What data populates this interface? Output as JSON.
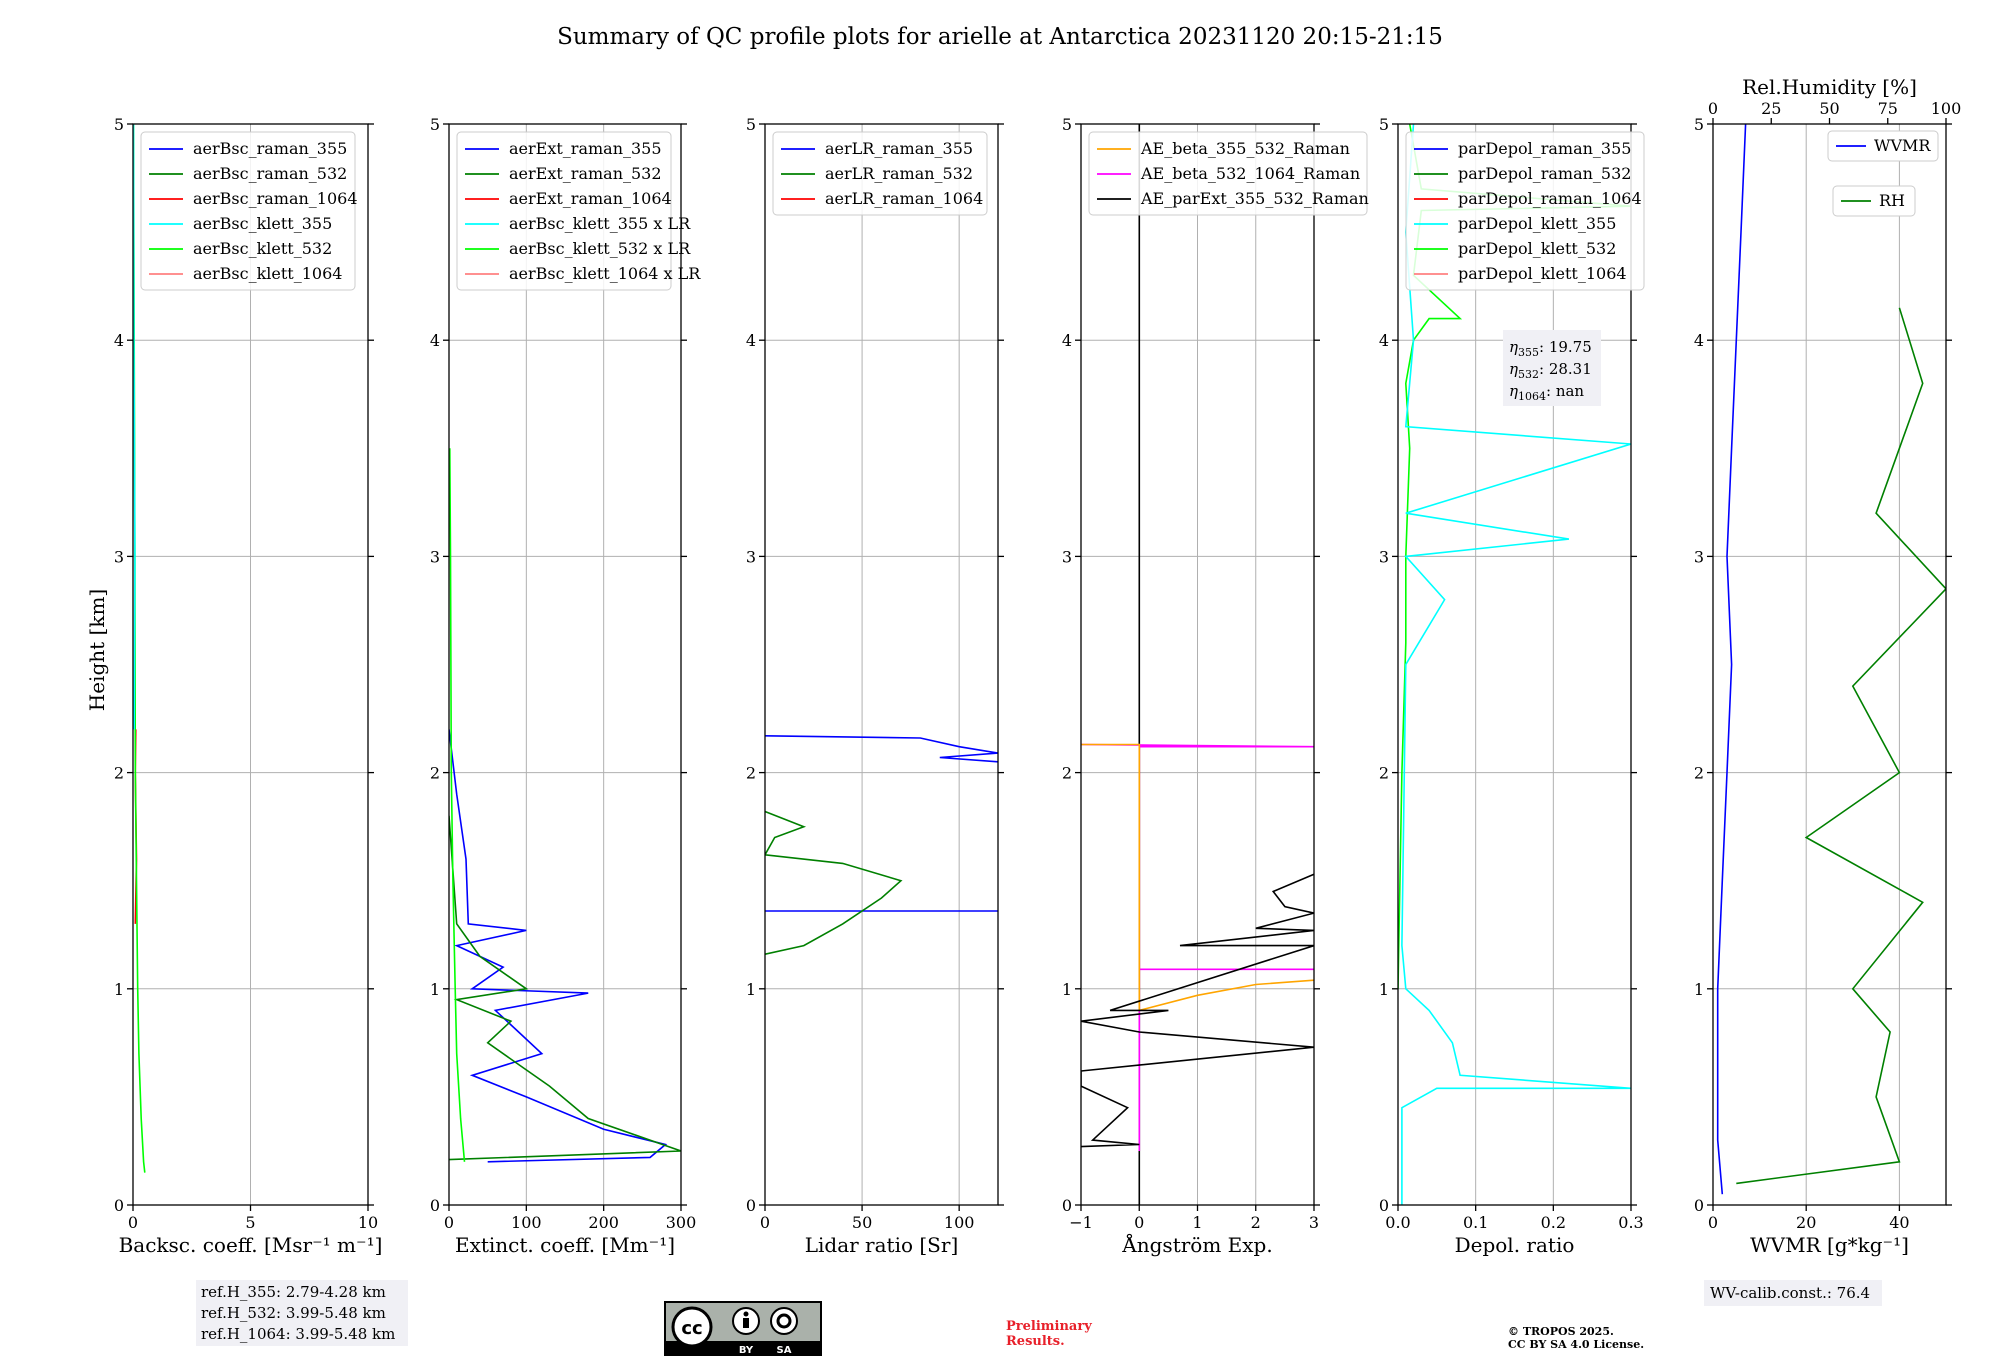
{
  "title": "Summary of QC profile plots for arielle at Antarctica 20231120 20:15-21:15",
  "ylabel": "Height [km]",
  "colors": {
    "raman_355": "#0000ff",
    "raman_532": "#008000",
    "raman_1064": "#ff0000",
    "klett_355": "#00ffff",
    "klett_532": "#00ff00",
    "klett_1064": "#ff8080",
    "ae_beta_355_532": "#ffa500",
    "ae_beta_532_1064": "#ff00ff",
    "ae_parext": "#000000",
    "grid": "#b0b0b0",
    "box_bg": "#f0f0f5"
  },
  "panels": [
    {
      "key": "bsc",
      "xlabel": "Backsc. coeff. [Msr⁻¹ m⁻¹]",
      "xlim": [
        0,
        10
      ],
      "xticks": [
        {
          "v": 0,
          "t": "0"
        },
        {
          "v": 5,
          "t": "5"
        },
        {
          "v": 10,
          "t": "10"
        }
      ],
      "legend": [
        "aerBsc_raman_355",
        "aerBsc_raman_532",
        "aerBsc_raman_1064",
        "aerBsc_klett_355",
        "aerBsc_klett_532",
        "aerBsc_klett_1064"
      ],
      "legend_colors": [
        "raman_355",
        "raman_532",
        "raman_1064",
        "klett_355",
        "klett_532",
        "klett_1064"
      ]
    },
    {
      "key": "ext",
      "xlabel": "Extinct. coeff. [Mm⁻¹]",
      "xlim": [
        0,
        300
      ],
      "xticks": [
        {
          "v": 0,
          "t": "0"
        },
        {
          "v": 100,
          "t": "100"
        },
        {
          "v": 200,
          "t": "200"
        },
        {
          "v": 300,
          "t": "300"
        }
      ],
      "legend": [
        "aerExt_raman_355",
        "aerExt_raman_532",
        "aerExt_raman_1064",
        "aerBsc_klett_355 x LR",
        "aerBsc_klett_532 x LR",
        "aerBsc_klett_1064 x LR"
      ],
      "legend_colors": [
        "raman_355",
        "raman_532",
        "raman_1064",
        "klett_355",
        "klett_532",
        "klett_1064"
      ]
    },
    {
      "key": "lr",
      "xlabel": "Lidar ratio [Sr]",
      "xlim": [
        0,
        120
      ],
      "xticks": [
        {
          "v": 0,
          "t": "0"
        },
        {
          "v": 50,
          "t": "50"
        },
        {
          "v": 100,
          "t": "100"
        }
      ],
      "legend": [
        "aerLR_raman_355",
        "aerLR_raman_532",
        "aerLR_raman_1064"
      ],
      "legend_colors": [
        "raman_355",
        "raman_532",
        "raman_1064"
      ]
    },
    {
      "key": "ae",
      "xlabel": "Ångström Exp.",
      "xlim": [
        -1,
        3
      ],
      "xticks": [
        {
          "v": -1,
          "t": "−1"
        },
        {
          "v": 0,
          "t": "0"
        },
        {
          "v": 1,
          "t": "1"
        },
        {
          "v": 2,
          "t": "2"
        },
        {
          "v": 3,
          "t": "3"
        }
      ],
      "legend": [
        "AE_beta_355_532_Raman",
        "AE_beta_532_1064_Raman",
        "AE_parExt_355_532_Raman"
      ],
      "legend_colors": [
        "ae_beta_355_532",
        "ae_beta_532_1064",
        "ae_parext"
      ]
    },
    {
      "key": "dep",
      "xlabel": "Depol. ratio",
      "xlim": [
        0,
        0.3
      ],
      "xticks": [
        {
          "v": 0,
          "t": "0.0"
        },
        {
          "v": 0.1,
          "t": "0.1"
        },
        {
          "v": 0.2,
          "t": "0.2"
        },
        {
          "v": 0.3,
          "t": "0.3"
        }
      ],
      "legend": [
        "parDepol_raman_355",
        "parDepol_raman_532",
        "parDepol_raman_1064",
        "parDepol_klett_355",
        "parDepol_klett_532",
        "parDepol_klett_1064"
      ],
      "legend_colors": [
        "raman_355",
        "raman_532",
        "raman_1064",
        "klett_355",
        "klett_532",
        "klett_1064"
      ]
    },
    {
      "key": "wv",
      "xlabel": "WVMR [g*kg⁻¹]",
      "xlim": [
        0,
        50
      ],
      "xticks": [
        {
          "v": 0,
          "t": "0"
        },
        {
          "v": 20,
          "t": "20"
        },
        {
          "v": 40,
          "t": "40"
        }
      ],
      "toplabel": "Rel.Humidity [%]",
      "top_xlim": [
        0,
        100
      ],
      "top_xticks": [
        {
          "v": 0,
          "t": "0"
        },
        {
          "v": 25,
          "t": "25"
        },
        {
          "v": 50,
          "t": "50"
        },
        {
          "v": 75,
          "t": "75"
        },
        {
          "v": 100,
          "t": "100"
        }
      ],
      "legend_wvmr": "WVMR",
      "legend_rh": "RH"
    }
  ],
  "yaxis": {
    "ylim": [
      0,
      5
    ],
    "yticks": [
      0,
      1,
      2,
      3,
      4,
      5
    ]
  },
  "depol_box": [
    {
      "sym": "η",
      "sub": "355",
      "val": ": 19.75"
    },
    {
      "sym": "η",
      "sub": "532",
      "val": ": 28.31"
    },
    {
      "sym": "η",
      "sub": "1064",
      "val": ": nan"
    }
  ],
  "ref_box": [
    "ref.H_355: 2.79-4.28 km",
    "ref.H_532: 3.99-5.48 km",
    "ref.H_1064: 3.99-5.48 km"
  ],
  "wv_box": "WV-calib.const.: 76.4",
  "license_badge": {
    "cc": "cc",
    "by": "BY",
    "sa": "SA"
  },
  "preliminary": [
    "Preliminary",
    "Results."
  ],
  "copyright": [
    "© TROPOS 2025.",
    "CC BY SA 4.0 License."
  ],
  "chart_data": [
    {
      "type": "line",
      "panel": "bsc",
      "series": [
        {
          "name": "aerBsc_raman_1064",
          "color": "raman_1064",
          "points": [
            [
              0.1,
              1.3
            ],
            [
              0.15,
              1.6
            ],
            [
              0.1,
              2.0
            ],
            [
              0.12,
              2.2
            ]
          ]
        },
        {
          "name": "aerBsc_klett_532",
          "color": "klett_532",
          "points": [
            [
              0.5,
              0.15
            ],
            [
              0.45,
              0.2
            ],
            [
              0.35,
              0.4
            ],
            [
              0.25,
              0.7
            ],
            [
              0.2,
              1.0
            ],
            [
              0.15,
              1.5
            ],
            [
              0.1,
              2.0
            ],
            [
              0.08,
              3.0
            ],
            [
              0.05,
              4.0
            ],
            [
              0.02,
              5.0
            ]
          ]
        },
        {
          "name": "aerBsc_klett_355",
          "color": "klett_355",
          "points": [
            [
              0.05,
              2.2
            ],
            [
              0.08,
              3.0
            ],
            [
              0.04,
              4.0
            ],
            [
              0.02,
              5.0
            ]
          ]
        }
      ]
    },
    {
      "type": "line",
      "panel": "ext",
      "series": [
        {
          "name": "aerExt_raman_355",
          "color": "raman_355",
          "points": [
            [
              0,
              2.2
            ],
            [
              10,
              1.9
            ],
            [
              22,
              1.6
            ],
            [
              25,
              1.3
            ],
            [
              100,
              1.27
            ],
            [
              10,
              1.2
            ],
            [
              70,
              1.1
            ],
            [
              30,
              1.0
            ],
            [
              180,
              0.98
            ],
            [
              60,
              0.9
            ],
            [
              90,
              0.8
            ],
            [
              120,
              0.7
            ],
            [
              30,
              0.6
            ],
            [
              100,
              0.5
            ],
            [
              200,
              0.35
            ],
            [
              280,
              0.28
            ],
            [
              260,
              0.22
            ],
            [
              50,
              0.2
            ]
          ]
        },
        {
          "name": "aerExt_raman_532",
          "color": "raman_532",
          "points": [
            [
              0,
              1.8
            ],
            [
              10,
              1.3
            ],
            [
              40,
              1.15
            ],
            [
              100,
              1.0
            ],
            [
              10,
              0.95
            ],
            [
              80,
              0.85
            ],
            [
              50,
              0.75
            ],
            [
              90,
              0.65
            ],
            [
              130,
              0.55
            ],
            [
              180,
              0.4
            ],
            [
              300,
              0.25
            ],
            [
              0,
              0.21
            ]
          ]
        },
        {
          "name": "aerBsc_klett_532 x LR",
          "color": "klett_532",
          "points": [
            [
              20,
              0.2
            ],
            [
              15,
              0.4
            ],
            [
              10,
              0.7
            ],
            [
              8,
              1.0
            ],
            [
              5,
              1.5
            ],
            [
              3,
              2.0
            ],
            [
              2,
              3.0
            ],
            [
              1,
              3.5
            ]
          ]
        }
      ]
    },
    {
      "type": "line",
      "panel": "lr",
      "series": [
        {
          "name": "aerLR_raman_355",
          "color": "raman_355",
          "points": [
            [
              0,
              2.17
            ],
            [
              80,
              2.16
            ],
            [
              100,
              2.12
            ],
            [
              120,
              2.09
            ],
            [
              90,
              2.07
            ],
            [
              120,
              2.05
            ]
          ]
        },
        {
          "name": "aerLR_raman_355_seg2",
          "color": "raman_355",
          "points": [
            [
              0,
              1.36
            ],
            [
              120,
              1.36
            ]
          ]
        },
        {
          "name": "aerLR_raman_532",
          "color": "raman_532",
          "points": [
            [
              0,
              1.82
            ],
            [
              20,
              1.75
            ],
            [
              5,
              1.7
            ],
            [
              0,
              1.62
            ],
            [
              40,
              1.58
            ],
            [
              70,
              1.5
            ],
            [
              60,
              1.42
            ],
            [
              40,
              1.3
            ],
            [
              20,
              1.2
            ],
            [
              0,
              1.16
            ]
          ]
        }
      ]
    },
    {
      "type": "line",
      "panel": "ae",
      "series": [
        {
          "name": "AE_parExt_355_532_Raman",
          "color": "ae_parext",
          "points": [
            [
              0,
              5.0
            ],
            [
              0,
              2.13
            ],
            [
              0,
              0.0
            ]
          ]
        },
        {
          "name": "AE_beta_532_1064_Raman",
          "color": "ae_beta_532_1064",
          "points": [
            [
              -1,
              2.13
            ],
            [
              3,
              2.12
            ],
            [
              0,
              2.12
            ],
            [
              0,
              1.09
            ],
            [
              3,
              1.09
            ],
            [
              0,
              1.09
            ],
            [
              0,
              0.25
            ]
          ]
        },
        {
          "name": "AE_beta_355_532_Raman",
          "color": "ae_beta_355_532",
          "points": [
            [
              -1,
              2.13
            ],
            [
              0,
              2.13
            ],
            [
              0,
              0.9
            ],
            [
              1,
              0.97
            ],
            [
              2,
              1.02
            ],
            [
              3,
              1.04
            ]
          ]
        },
        {
          "name": "AE_parExt_355_532_Raman_low",
          "color": "ae_parext",
          "points": [
            [
              3,
              1.53
            ],
            [
              2.3,
              1.45
            ],
            [
              2.5,
              1.38
            ],
            [
              3,
              1.35
            ],
            [
              2,
              1.28
            ],
            [
              3,
              1.27
            ],
            [
              0.7,
              1.2
            ],
            [
              3,
              1.2
            ],
            [
              -0.5,
              0.9
            ],
            [
              0.5,
              0.9
            ],
            [
              -1,
              0.85
            ],
            [
              0,
              0.8
            ],
            [
              3,
              0.73
            ],
            [
              -1,
              0.62
            ],
            [
              -1,
              0.55
            ],
            [
              -0.2,
              0.45
            ],
            [
              -0.8,
              0.3
            ],
            [
              0,
              0.28
            ],
            [
              -1,
              0.27
            ]
          ]
        }
      ]
    },
    {
      "type": "line",
      "panel": "dep",
      "series": [
        {
          "name": "parDepol_klett_532",
          "color": "klett_532",
          "points": [
            [
              0,
              1.0
            ],
            [
              0.005,
              2.0
            ],
            [
              0.01,
              2.6
            ],
            [
              0.01,
              3.0
            ],
            [
              0.015,
              3.5
            ],
            [
              0.01,
              3.8
            ],
            [
              0.02,
              4.0
            ],
            [
              0.04,
              4.1
            ],
            [
              0.08,
              4.1
            ],
            [
              0.02,
              4.3
            ],
            [
              0.03,
              4.6
            ],
            [
              0.3,
              4.62
            ],
            [
              0.03,
              4.7
            ],
            [
              0.015,
              5.0
            ]
          ]
        },
        {
          "name": "parDepol_klett_355",
          "color": "klett_355",
          "points": [
            [
              0.005,
              0.0
            ],
            [
              0.005,
              0.45
            ],
            [
              0.05,
              0.54
            ],
            [
              0.3,
              0.54
            ],
            [
              0.08,
              0.6
            ],
            [
              0.07,
              0.75
            ],
            [
              0.04,
              0.9
            ],
            [
              0.01,
              1.0
            ],
            [
              0.005,
              1.2
            ],
            [
              0.01,
              2.5
            ],
            [
              0.06,
              2.8
            ],
            [
              0.01,
              3.0
            ],
            [
              0.22,
              3.08
            ],
            [
              0.01,
              3.2
            ],
            [
              0.3,
              3.52
            ],
            [
              0.01,
              3.6
            ],
            [
              0.02,
              4.0
            ],
            [
              0.01,
              4.5
            ],
            [
              0.02,
              5.0
            ]
          ]
        }
      ]
    },
    {
      "type": "line",
      "panel": "wv",
      "series": [
        {
          "name": "WVMR",
          "color": "raman_355",
          "points": [
            [
              2,
              0.05
            ],
            [
              1,
              0.3
            ],
            [
              1,
              1.0
            ],
            [
              2,
              1.5
            ],
            [
              3,
              2.0
            ],
            [
              4,
              2.5
            ],
            [
              3,
              3.0
            ],
            [
              4,
              3.5
            ],
            [
              5,
              4.0
            ],
            [
              6,
              4.5
            ],
            [
              7,
              5.0
            ]
          ]
        },
        {
          "name": "RH",
          "color": "raman_532",
          "points": [
            [
              5,
              0.1
            ],
            [
              40,
              0.2
            ],
            [
              35,
              0.5
            ],
            [
              38,
              0.8
            ],
            [
              30,
              1.0
            ],
            [
              45,
              1.4
            ],
            [
              20,
              1.7
            ],
            [
              40,
              2.0
            ],
            [
              30,
              2.4
            ],
            [
              50,
              2.85
            ],
            [
              35,
              3.2
            ],
            [
              40,
              3.5
            ],
            [
              45,
              3.8
            ],
            [
              40,
              4.15
            ]
          ]
        }
      ]
    }
  ]
}
